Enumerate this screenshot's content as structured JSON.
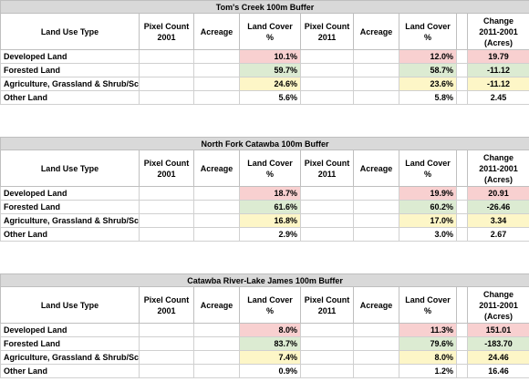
{
  "headers": {
    "land_use_type": "Land Use Type",
    "pixel_2001": [
      "Pixel Count",
      "2001"
    ],
    "acreage": "Acreage",
    "land_cover": [
      "Land Cover",
      "%"
    ],
    "pixel_2011": [
      "Pixel Count",
      "2011"
    ],
    "change": [
      "Change",
      "2011-2001",
      "(Acres)"
    ]
  },
  "colors": {
    "increase": "#f8d0d0",
    "forest": "#dcebd2",
    "agri": "#fdf6c7",
    "title_bg": "#d9d9d9"
  },
  "tables": [
    {
      "title": "Tom's Creek 100m Buffer",
      "rows": [
        {
          "type": "Developed Land",
          "cover2001": "10.1%",
          "cover2011": "12.0%",
          "change": "19.79"
        },
        {
          "type": "Forested Land",
          "cover2001": "59.7%",
          "cover2011": "58.7%",
          "change": "-11.12"
        },
        {
          "type": "Agriculture, Grassland & Shrub/Scrub Land",
          "cover2001": "24.6%",
          "cover2011": "23.6%",
          "change": "-11.12"
        },
        {
          "type": "Other Land",
          "cover2001": "5.6%",
          "cover2011": "5.8%",
          "change": "2.45"
        }
      ]
    },
    {
      "title": "North Fork Catawba 100m Buffer",
      "rows": [
        {
          "type": "Developed Land",
          "cover2001": "18.7%",
          "cover2011": "19.9%",
          "change": "20.91"
        },
        {
          "type": "Forested Land",
          "cover2001": "61.6%",
          "cover2011": "60.2%",
          "change": "-26.46"
        },
        {
          "type": "Agriculture, Grassland & Shrub/Scrub Land",
          "cover2001": "16.8%",
          "cover2011": "17.0%",
          "change": "3.34"
        },
        {
          "type": "Other Land",
          "cover2001": "2.9%",
          "cover2011": "3.0%",
          "change": "2.67"
        }
      ]
    },
    {
      "title": "Catawba River-Lake James 100m Buffer",
      "rows": [
        {
          "type": "Developed Land",
          "cover2001": "8.0%",
          "cover2011": "11.3%",
          "change": "151.01"
        },
        {
          "type": "Forested Land",
          "cover2001": "83.7%",
          "cover2011": "79.6%",
          "change": "-183.70"
        },
        {
          "type": "Agriculture, Grassland & Shrub/Scrub Land",
          "cover2001": "7.4%",
          "cover2011": "8.0%",
          "change": "24.46"
        },
        {
          "type": "Other Land",
          "cover2001": "0.9%",
          "cover2011": "1.2%",
          "change": "16.46"
        }
      ]
    }
  ]
}
